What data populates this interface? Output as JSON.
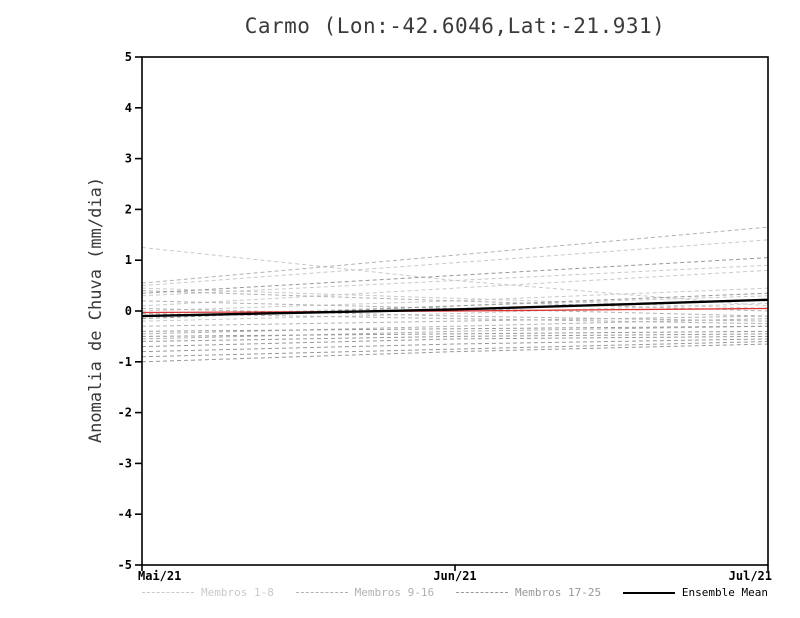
{
  "chart": {
    "title": "Carmo (Lon:-42.6046,Lat:-21.931)",
    "ylabel": "Anomalia de Chuva (mm/dia)"
  },
  "legend": {
    "items": [
      {
        "label": "Membros 1-8",
        "color": "#c9c9c9",
        "style": "dashed"
      },
      {
        "label": "Membros 9-16",
        "color": "#b2b2b2",
        "style": "dashed"
      },
      {
        "label": "Membros 17-25",
        "color": "#989898",
        "style": "dashed"
      },
      {
        "label": "Ensemble Mean",
        "color": "#000000",
        "style": "solid"
      }
    ]
  },
  "chart_data": {
    "type": "line",
    "title": "Carmo (Lon:-42.6046,Lat:-21.931)",
    "xlabel": "",
    "ylabel": "Anomalia de Chuva (mm/dia)",
    "x_categories": [
      "Mai/21",
      "Jun/21",
      "Jul/21"
    ],
    "ylim": [
      -5,
      5
    ],
    "yticks": [
      -5,
      -4,
      -3,
      -2,
      -1,
      0,
      1,
      2,
      3,
      4,
      5
    ],
    "grid": false,
    "legend_position": "bottom",
    "series": [
      {
        "name": "membro-01",
        "group": "Membros 1-8",
        "color": "#c9c9c9",
        "style": "dashed",
        "width": 1,
        "values": [
          1.25,
          0.6,
          0.1
        ]
      },
      {
        "name": "membro-02",
        "group": "Membros 1-8",
        "color": "#c9c9c9",
        "style": "dashed",
        "width": 1,
        "values": [
          0.5,
          0.95,
          1.4
        ]
      },
      {
        "name": "membro-03",
        "group": "Membros 1-8",
        "color": "#c9c9c9",
        "style": "dashed",
        "width": 1,
        "values": [
          0.45,
          0.25,
          0.05
        ]
      },
      {
        "name": "membro-04",
        "group": "Membros 1-8",
        "color": "#c9c9c9",
        "style": "dashed",
        "width": 1,
        "values": [
          0.3,
          0.6,
          0.9
        ]
      },
      {
        "name": "membro-05",
        "group": "Membros 1-8",
        "color": "#c9c9c9",
        "style": "dashed",
        "width": 1,
        "values": [
          0.1,
          0.45,
          0.8
        ]
      },
      {
        "name": "membro-06",
        "group": "Membros 1-8",
        "color": "#c9c9c9",
        "style": "dashed",
        "width": 1,
        "values": [
          0.0,
          0.2,
          0.45
        ]
      },
      {
        "name": "membro-07",
        "group": "Membros 1-8",
        "color": "#c9c9c9",
        "style": "dashed",
        "width": 1,
        "values": [
          -0.1,
          0.1,
          0.3
        ]
      },
      {
        "name": "membro-08",
        "group": "Membros 1-8",
        "color": "#c9c9c9",
        "style": "dashed",
        "width": 1,
        "values": [
          -0.2,
          -0.05,
          0.15
        ]
      },
      {
        "name": "membro-09",
        "group": "Membros 9-16",
        "color": "#b2b2b2",
        "style": "dashed",
        "width": 1,
        "values": [
          0.55,
          1.1,
          1.65
        ]
      },
      {
        "name": "membro-10",
        "group": "Membros 9-16",
        "color": "#b2b2b2",
        "style": "dashed",
        "width": 1,
        "values": [
          0.4,
          0.2,
          0.0
        ]
      },
      {
        "name": "membro-11",
        "group": "Membros 9-16",
        "color": "#b2b2b2",
        "style": "dashed",
        "width": 1,
        "values": [
          0.2,
          0.05,
          -0.1
        ]
      },
      {
        "name": "membro-12",
        "group": "Membros 9-16",
        "color": "#b2b2b2",
        "style": "dashed",
        "width": 1,
        "values": [
          0.05,
          -0.1,
          -0.2
        ]
      },
      {
        "name": "membro-13",
        "group": "Membros 9-16",
        "color": "#b2b2b2",
        "style": "dashed",
        "width": 1,
        "values": [
          -0.05,
          -0.15,
          -0.25
        ]
      },
      {
        "name": "membro-14",
        "group": "Membros 9-16",
        "color": "#b2b2b2",
        "style": "dashed",
        "width": 1,
        "values": [
          -0.3,
          -0.2,
          -0.1
        ]
      },
      {
        "name": "membro-15",
        "group": "Membros 9-16",
        "color": "#b2b2b2",
        "style": "dashed",
        "width": 1,
        "values": [
          -0.45,
          -0.3,
          -0.15
        ]
      },
      {
        "name": "membro-16",
        "group": "Membros 9-16",
        "color": "#b2b2b2",
        "style": "dashed",
        "width": 1,
        "values": [
          -0.55,
          -0.4,
          -0.3
        ]
      },
      {
        "name": "membro-17",
        "group": "Membros 17-25",
        "color": "#989898",
        "style": "dashed",
        "width": 1,
        "values": [
          0.35,
          0.7,
          1.05
        ]
      },
      {
        "name": "membro-18",
        "group": "Membros 17-25",
        "color": "#989898",
        "style": "dashed",
        "width": 1,
        "values": [
          -0.15,
          0.1,
          0.35
        ]
      },
      {
        "name": "membro-19",
        "group": "Membros 17-25",
        "color": "#989898",
        "style": "dashed",
        "width": 1,
        "values": [
          -0.4,
          -0.35,
          -0.3
        ]
      },
      {
        "name": "membro-20",
        "group": "Membros 17-25",
        "color": "#989898",
        "style": "dashed",
        "width": 1,
        "values": [
          -0.5,
          -0.45,
          -0.4
        ]
      },
      {
        "name": "membro-21",
        "group": "Membros 17-25",
        "color": "#989898",
        "style": "dashed",
        "width": 1,
        "values": [
          -0.6,
          -0.5,
          -0.45
        ]
      },
      {
        "name": "membro-22",
        "group": "Membros 17-25",
        "color": "#989898",
        "style": "dashed",
        "width": 1,
        "values": [
          -0.7,
          -0.55,
          -0.5
        ]
      },
      {
        "name": "membro-23",
        "group": "Membros 17-25",
        "color": "#989898",
        "style": "dashed",
        "width": 1,
        "values": [
          -0.8,
          -0.65,
          -0.55
        ]
      },
      {
        "name": "membro-24",
        "group": "Membros 17-25",
        "color": "#989898",
        "style": "dashed",
        "width": 1,
        "values": [
          -0.9,
          -0.75,
          -0.6
        ]
      },
      {
        "name": "membro-25",
        "group": "Membros 17-25",
        "color": "#989898",
        "style": "dashed",
        "width": 1,
        "values": [
          -1.0,
          -0.8,
          -0.65
        ]
      },
      {
        "name": "reference-line",
        "group": "reference",
        "color": "#dd3333",
        "style": "solid",
        "width": 1.3,
        "values": [
          -0.03,
          0.0,
          0.05
        ]
      },
      {
        "name": "ensemble-mean",
        "group": "Ensemble Mean",
        "color": "#000000",
        "style": "solid",
        "width": 2.4,
        "values": [
          -0.1,
          0.03,
          0.22
        ]
      }
    ]
  }
}
